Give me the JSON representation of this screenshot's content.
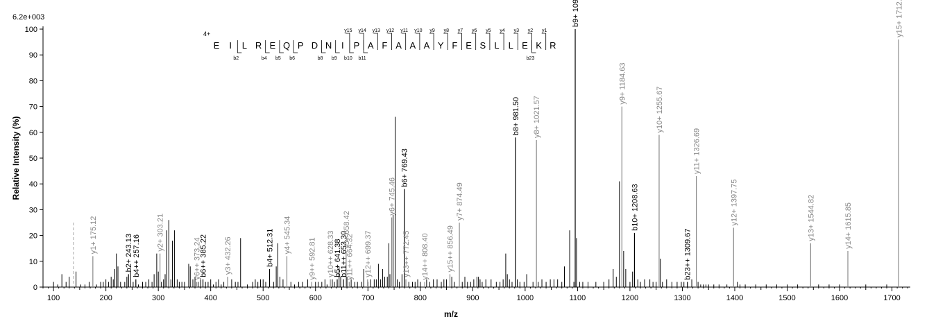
{
  "chart_data": {
    "type": "bar",
    "max_intensity_label": "6.2e+003",
    "xlabel": "m/z",
    "ylabel": "Relative   Intensity (%)",
    "xlim": [
      80,
      1735
    ],
    "ylim": [
      0,
      100
    ],
    "xticks": [
      100,
      200,
      300,
      400,
      500,
      600,
      700,
      800,
      900,
      1000,
      1100,
      1200,
      1300,
      1400,
      1500,
      1600,
      1700
    ],
    "yticks": [
      0,
      10,
      20,
      30,
      40,
      50,
      60,
      70,
      80,
      90,
      100
    ],
    "colors": {
      "b_ion": "#000000",
      "y_ion": "#888888",
      "unassigned": "#000000",
      "label_b": "#000000",
      "label_y": "#888888",
      "precursor": "#aaaaaa"
    },
    "precursor": {
      "mz": 138,
      "height": 25
    },
    "labeled_peaks": [
      {
        "mz": 175.12,
        "intensity": 12,
        "label": "y1+ 175.12",
        "ion": "y"
      },
      {
        "mz": 243.13,
        "intensity": 5,
        "label": "b2+ 243.13",
        "ion": "b"
      },
      {
        "mz": 257.16,
        "intensity": 3,
        "label": "b4++ 257.16",
        "ion": "b"
      },
      {
        "mz": 303.21,
        "intensity": 13,
        "label": "y2+ 303.21",
        "ion": "y"
      },
      {
        "mz": 373.24,
        "intensity": 2,
        "label": "y6++ 373.24",
        "ion": "y"
      },
      {
        "mz": 385.22,
        "intensity": 3,
        "label": "b6++ 385.22",
        "ion": "b"
      },
      {
        "mz": 432.26,
        "intensity": 4,
        "label": "y3+ 432.26",
        "ion": "y"
      },
      {
        "mz": 512.31,
        "intensity": 7,
        "label": "b4+ 512.31",
        "ion": "b"
      },
      {
        "mz": 545.34,
        "intensity": 12,
        "label": "y4+ 545.34",
        "ion": "y"
      },
      {
        "mz": 592.81,
        "intensity": 2,
        "label": "y9++ 592.81",
        "ion": "y"
      },
      {
        "mz": 628.33,
        "intensity": 3,
        "label": "y10++ 628.33",
        "ion": "y"
      },
      {
        "mz": 641.38,
        "intensity": 3,
        "label": "b5+ 641.38",
        "ion": "b"
      },
      {
        "mz": 653.3,
        "intensity": 3,
        "label": "b11++ 653.30",
        "ion": "b"
      },
      {
        "mz": 658.42,
        "intensity": 14,
        "label": "y5+ 658.42",
        "ion": "y"
      },
      {
        "mz": 664.32,
        "intensity": 2,
        "label": "y11++ 664.32",
        "ion": "y"
      },
      {
        "mz": 699.37,
        "intensity": 3,
        "label": "y12++ 699.37",
        "ion": "y"
      },
      {
        "mz": 745.46,
        "intensity": 27,
        "label": "y6+ 745.46",
        "ion": "y"
      },
      {
        "mz": 769.43,
        "intensity": 38,
        "label": "b6+ 769.43",
        "ion": "b"
      },
      {
        "mz": 772.45,
        "intensity": 3,
        "label": "y13++ 772.45",
        "ion": "y"
      },
      {
        "mz": 808.4,
        "intensity": 2,
        "label": "y14++ 808.40",
        "ion": "y"
      },
      {
        "mz": 856.49,
        "intensity": 5,
        "label": "y15++ 856.49",
        "ion": "y"
      },
      {
        "mz": 874.49,
        "intensity": 25,
        "label": "y7+ 874.49",
        "ion": "y"
      },
      {
        "mz": 981.5,
        "intensity": 58,
        "label": "b8+ 981.50",
        "ion": "b"
      },
      {
        "mz": 1021.57,
        "intensity": 57,
        "label": "y8+ 1021.57",
        "ion": "y"
      },
      {
        "mz": 1095.55,
        "intensity": 100,
        "label": "b9+ 1095.55",
        "ion": "b"
      },
      {
        "mz": 1184.63,
        "intensity": 70,
        "label": "y9+ 1184.63",
        "ion": "y"
      },
      {
        "mz": 1208.63,
        "intensity": 21,
        "label": "b10+ 1208.63",
        "ion": "b"
      },
      {
        "mz": 1255.67,
        "intensity": 59,
        "label": "y10+ 1255.67",
        "ion": "y"
      },
      {
        "mz": 1309.67,
        "intensity": 2,
        "label": "b23++ 1309.67",
        "ion": "b"
      },
      {
        "mz": 1326.69,
        "intensity": 43,
        "label": "y11+ 1326.69",
        "ion": "y"
      },
      {
        "mz": 1397.75,
        "intensity": 23,
        "label": "y12+ 1397.75",
        "ion": "y"
      },
      {
        "mz": 1544.82,
        "intensity": 17,
        "label": "y13+ 1544.82",
        "ion": "y"
      },
      {
        "mz": 1615.85,
        "intensity": 14,
        "label": "y14+ 1615.85",
        "ion": "y"
      },
      {
        "mz": 1712.91,
        "intensity": 96,
        "label": "y15+ 1712.91",
        "ion": "y"
      }
    ],
    "unlabeled_peaks": [
      [
        100,
        2
      ],
      [
        108,
        1
      ],
      [
        116,
        5
      ],
      [
        124,
        2
      ],
      [
        130,
        4
      ],
      [
        143,
        6
      ],
      [
        152,
        1
      ],
      [
        160,
        1
      ],
      [
        168,
        2
      ],
      [
        182,
        1
      ],
      [
        190,
        2
      ],
      [
        195,
        2
      ],
      [
        200,
        3
      ],
      [
        205,
        2
      ],
      [
        210,
        4
      ],
      [
        214,
        3
      ],
      [
        217,
        7
      ],
      [
        220,
        13
      ],
      [
        223,
        8
      ],
      [
        228,
        2
      ],
      [
        236,
        2
      ],
      [
        240,
        4
      ],
      [
        247,
        6
      ],
      [
        252,
        2
      ],
      [
        262,
        1
      ],
      [
        270,
        2
      ],
      [
        276,
        2
      ],
      [
        282,
        3
      ],
      [
        288,
        2
      ],
      [
        292,
        5
      ],
      [
        297,
        13
      ],
      [
        300,
        6
      ],
      [
        306,
        2
      ],
      [
        310,
        3
      ],
      [
        313,
        5
      ],
      [
        316,
        22
      ],
      [
        320,
        26
      ],
      [
        324,
        3
      ],
      [
        327,
        18
      ],
      [
        331,
        22
      ],
      [
        336,
        3
      ],
      [
        340,
        2
      ],
      [
        345,
        2
      ],
      [
        350,
        2
      ],
      [
        358,
        9
      ],
      [
        361,
        8
      ],
      [
        366,
        3
      ],
      [
        370,
        4
      ],
      [
        376,
        2
      ],
      [
        381,
        3
      ],
      [
        390,
        2
      ],
      [
        395,
        2
      ],
      [
        400,
        3
      ],
      [
        405,
        1
      ],
      [
        410,
        2
      ],
      [
        415,
        3
      ],
      [
        420,
        1
      ],
      [
        425,
        2
      ],
      [
        440,
        3
      ],
      [
        447,
        2
      ],
      [
        452,
        2
      ],
      [
        457,
        19
      ],
      [
        470,
        1
      ],
      [
        480,
        2
      ],
      [
        485,
        3
      ],
      [
        490,
        2
      ],
      [
        495,
        3
      ],
      [
        500,
        3
      ],
      [
        505,
        2
      ],
      [
        520,
        2
      ],
      [
        525,
        8
      ],
      [
        528,
        17
      ],
      [
        532,
        4
      ],
      [
        538,
        3
      ],
      [
        553,
        2
      ],
      [
        560,
        1
      ],
      [
        568,
        2
      ],
      [
        575,
        2
      ],
      [
        585,
        3
      ],
      [
        600,
        2
      ],
      [
        605,
        2
      ],
      [
        612,
        2
      ],
      [
        618,
        3
      ],
      [
        622,
        1
      ],
      [
        632,
        3
      ],
      [
        636,
        2
      ],
      [
        645,
        8
      ],
      [
        648,
        4
      ],
      [
        660,
        4
      ],
      [
        668,
        3
      ],
      [
        675,
        2
      ],
      [
        680,
        2
      ],
      [
        688,
        2
      ],
      [
        692,
        7
      ],
      [
        700,
        2
      ],
      [
        705,
        3
      ],
      [
        712,
        3
      ],
      [
        716,
        3
      ],
      [
        720,
        9
      ],
      [
        724,
        3
      ],
      [
        728,
        7
      ],
      [
        732,
        4
      ],
      [
        737,
        4
      ],
      [
        740,
        17
      ],
      [
        742,
        5
      ],
      [
        748,
        28
      ],
      [
        752,
        66
      ],
      [
        756,
        3
      ],
      [
        760,
        2
      ],
      [
        765,
        5
      ],
      [
        778,
        2
      ],
      [
        785,
        2
      ],
      [
        790,
        2
      ],
      [
        795,
        3
      ],
      [
        800,
        2
      ],
      [
        812,
        3
      ],
      [
        818,
        2
      ],
      [
        825,
        3
      ],
      [
        832,
        3
      ],
      [
        840,
        2
      ],
      [
        845,
        3
      ],
      [
        850,
        3
      ],
      [
        860,
        4
      ],
      [
        865,
        2
      ],
      [
        880,
        2
      ],
      [
        885,
        4
      ],
      [
        890,
        2
      ],
      [
        896,
        2
      ],
      [
        902,
        3
      ],
      [
        908,
        4
      ],
      [
        911,
        4
      ],
      [
        914,
        3
      ],
      [
        918,
        2
      ],
      [
        925,
        3
      ],
      [
        935,
        3
      ],
      [
        945,
        2
      ],
      [
        952,
        2
      ],
      [
        958,
        3
      ],
      [
        963,
        13
      ],
      [
        966,
        5
      ],
      [
        970,
        3
      ],
      [
        975,
        2
      ],
      [
        985,
        3
      ],
      [
        990,
        2
      ],
      [
        998,
        2
      ],
      [
        1003,
        5
      ],
      [
        1015,
        2
      ],
      [
        1025,
        2
      ],
      [
        1032,
        3
      ],
      [
        1040,
        2
      ],
      [
        1048,
        3
      ],
      [
        1055,
        3
      ],
      [
        1062,
        3
      ],
      [
        1070,
        2
      ],
      [
        1075,
        8
      ],
      [
        1085,
        22
      ],
      [
        1093,
        2
      ],
      [
        1098,
        19
      ],
      [
        1104,
        2
      ],
      [
        1110,
        2
      ],
      [
        1120,
        2
      ],
      [
        1135,
        2
      ],
      [
        1150,
        2
      ],
      [
        1160,
        3
      ],
      [
        1168,
        7
      ],
      [
        1174,
        4
      ],
      [
        1180,
        41
      ],
      [
        1188,
        14
      ],
      [
        1192,
        7
      ],
      [
        1200,
        2
      ],
      [
        1205,
        6
      ],
      [
        1215,
        3
      ],
      [
        1220,
        2
      ],
      [
        1228,
        3
      ],
      [
        1238,
        3
      ],
      [
        1244,
        2
      ],
      [
        1250,
        2
      ],
      [
        1258,
        11
      ],
      [
        1262,
        2
      ],
      [
        1270,
        3
      ],
      [
        1280,
        2
      ],
      [
        1290,
        2
      ],
      [
        1298,
        2
      ],
      [
        1303,
        2
      ],
      [
        1318,
        3
      ],
      [
        1330,
        2
      ],
      [
        1335,
        1
      ],
      [
        1340,
        1
      ],
      [
        1345,
        1
      ],
      [
        1350,
        1
      ],
      [
        1360,
        1
      ],
      [
        1370,
        1
      ],
      [
        1385,
        1
      ],
      [
        1405,
        2
      ],
      [
        1410,
        1
      ],
      [
        1420,
        1
      ],
      [
        1440,
        1
      ],
      [
        1460,
        1
      ],
      [
        1480,
        1
      ],
      [
        1500,
        1
      ],
      [
        1520,
        1
      ],
      [
        1560,
        1
      ],
      [
        1580,
        1
      ],
      [
        1600,
        1
      ],
      [
        1650,
        1
      ],
      [
        1690,
        1
      ]
    ],
    "sequence": {
      "charge": "4+",
      "residues": [
        "E",
        "I",
        "L",
        "R",
        "E",
        "Q",
        "P",
        "D",
        "N",
        "I",
        "P",
        "A",
        "F",
        "A",
        "A",
        "A",
        "Y",
        "F",
        "E",
        "S",
        "L",
        "L",
        "E",
        "K",
        "R"
      ],
      "y_ions": [
        {
          "after": 9,
          "label": "y15"
        },
        {
          "after": 10,
          "label": "y14"
        },
        {
          "after": 11,
          "label": "y13"
        },
        {
          "after": 12,
          "label": "y12"
        },
        {
          "after": 13,
          "label": "y11"
        },
        {
          "after": 14,
          "label": "y10"
        },
        {
          "after": 15,
          "label": "y9"
        },
        {
          "after": 16,
          "label": "y8"
        },
        {
          "after": 17,
          "label": "y7"
        },
        {
          "after": 18,
          "label": "y6"
        },
        {
          "after": 19,
          "label": "y5"
        },
        {
          "after": 20,
          "label": "y4"
        },
        {
          "after": 21,
          "label": "y3"
        },
        {
          "after": 22,
          "label": "y2"
        },
        {
          "after": 23,
          "label": "y1"
        }
      ],
      "b_ions": [
        {
          "after": 1,
          "label": "b2"
        },
        {
          "after": 3,
          "label": "b4"
        },
        {
          "after": 4,
          "label": "b5"
        },
        {
          "after": 5,
          "label": "b6"
        },
        {
          "after": 7,
          "label": "b8"
        },
        {
          "after": 8,
          "label": "b9"
        },
        {
          "after": 9,
          "label": "b10"
        },
        {
          "after": 10,
          "label": "b11"
        },
        {
          "after": 22,
          "label": "b23"
        }
      ]
    }
  }
}
